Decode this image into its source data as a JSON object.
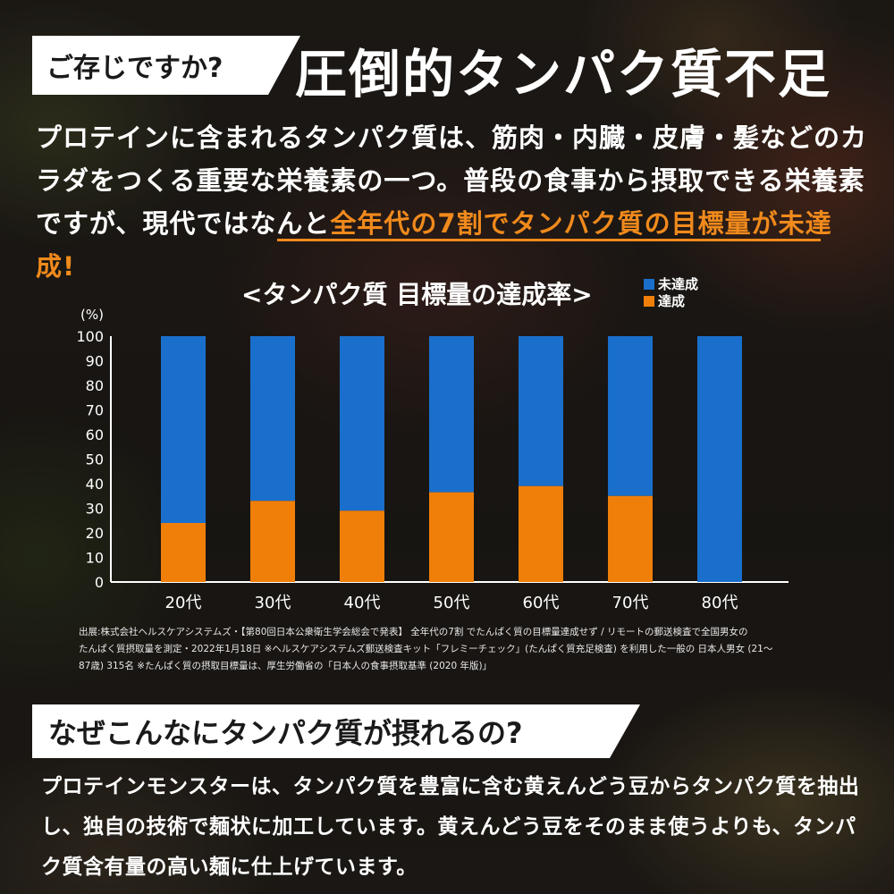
{
  "header": {
    "tag": "ご存じですか?",
    "headline": "圧倒的タンパク質不足"
  },
  "intro": {
    "text_before": "プロテインに含まれるタンパク質は、筋肉・内臓・皮膚・髪などのカラダをつくる重要な栄養素の一つ。普段の食事から摂取できる栄養素ですが、現代ではなんと",
    "highlight": "全年代の7割でタンパク質の目標量が未達成!"
  },
  "chart_data": {
    "type": "bar",
    "stacked": true,
    "title": "<タンパク質 目標量の達成率>",
    "ylabel": "(%)",
    "ylim": [
      0,
      100
    ],
    "yticks": [
      "0",
      "10",
      "20",
      "30",
      "40",
      "50",
      "60",
      "70",
      "80",
      "90",
      "100"
    ],
    "categories": [
      "20代",
      "30代",
      "40代",
      "50代",
      "60代",
      "70代",
      "80代"
    ],
    "series": [
      {
        "name": "達成",
        "color": "#f07f0a",
        "values": [
          24,
          33,
          29,
          36.5,
          39,
          35,
          0
        ]
      },
      {
        "name": "未達成",
        "color": "#1a6fcc",
        "values": [
          76,
          67,
          71,
          63.5,
          61,
          65,
          100
        ]
      }
    ],
    "legend": [
      {
        "name": "未達成",
        "color": "#1a6fcc"
      },
      {
        "name": "達成",
        "color": "#f07f0a"
      }
    ],
    "legend_position": "top-right",
    "grid": false
  },
  "source": {
    "line1": "出展:株式会社ヘルスケアシステムズ・【第80回日本公衆衛生学会総会で発表】 全年代の7割 でたんぱく質の目標量達成せず / リモートの郵送検査で全国男女の",
    "line2": "たんぱく質摂取量を測定・2022年1月18日  ※ヘルスケアシステムズ郵送検査キット「フレミーチェック」(たんぱく質充足検査) を利用した一般の 日本人男女 (21〜",
    "line3": "87歳) 315名  ※たんぱく質の摂取目標量は、厚生労働省の「日本人の食事摂取基準 (2020 年版)」"
  },
  "section2": {
    "title": "なぜこんなにタンパク質が摂れるの?",
    "body": "プロテインモンスターは、タンパク質を豊富に含む黄えんどう豆からタンパク質を抽出し、独自の技術で麺状に加工しています。黄えんどう豆をそのまま使うよりも、タンパク質含有量の高い麺に仕上げています。"
  }
}
